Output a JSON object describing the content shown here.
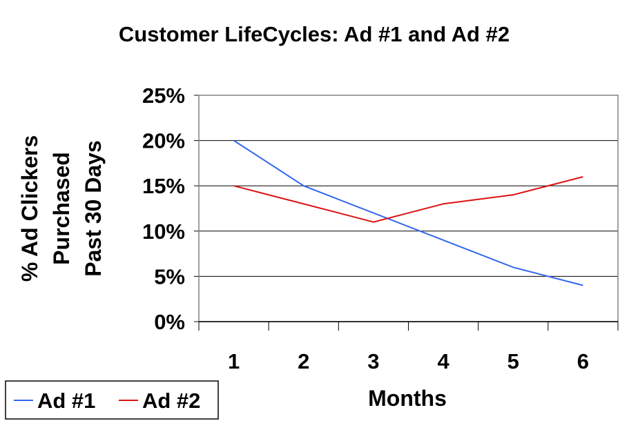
{
  "chart_data": {
    "type": "line",
    "title": "Customer LifeCycles: Ad #1 and Ad #2",
    "xlabel": "Months",
    "ylabel_lines": [
      "% Ad Clickers",
      "Purchased",
      "Past 30 Days"
    ],
    "categories": [
      "1",
      "2",
      "3",
      "4",
      "5",
      "6"
    ],
    "ylim": [
      0,
      25
    ],
    "yticks": [
      "0%",
      "5%",
      "10%",
      "15%",
      "20%",
      "25%"
    ],
    "grid": true,
    "legend_position": "bottom-left",
    "series": [
      {
        "name": "Ad #1",
        "color": "#3366ee",
        "values": [
          20,
          15,
          12,
          9,
          6,
          4
        ]
      },
      {
        "name": "Ad #2",
        "color": "#dd1111",
        "values": [
          15,
          13,
          11,
          13,
          14,
          16
        ]
      }
    ]
  }
}
